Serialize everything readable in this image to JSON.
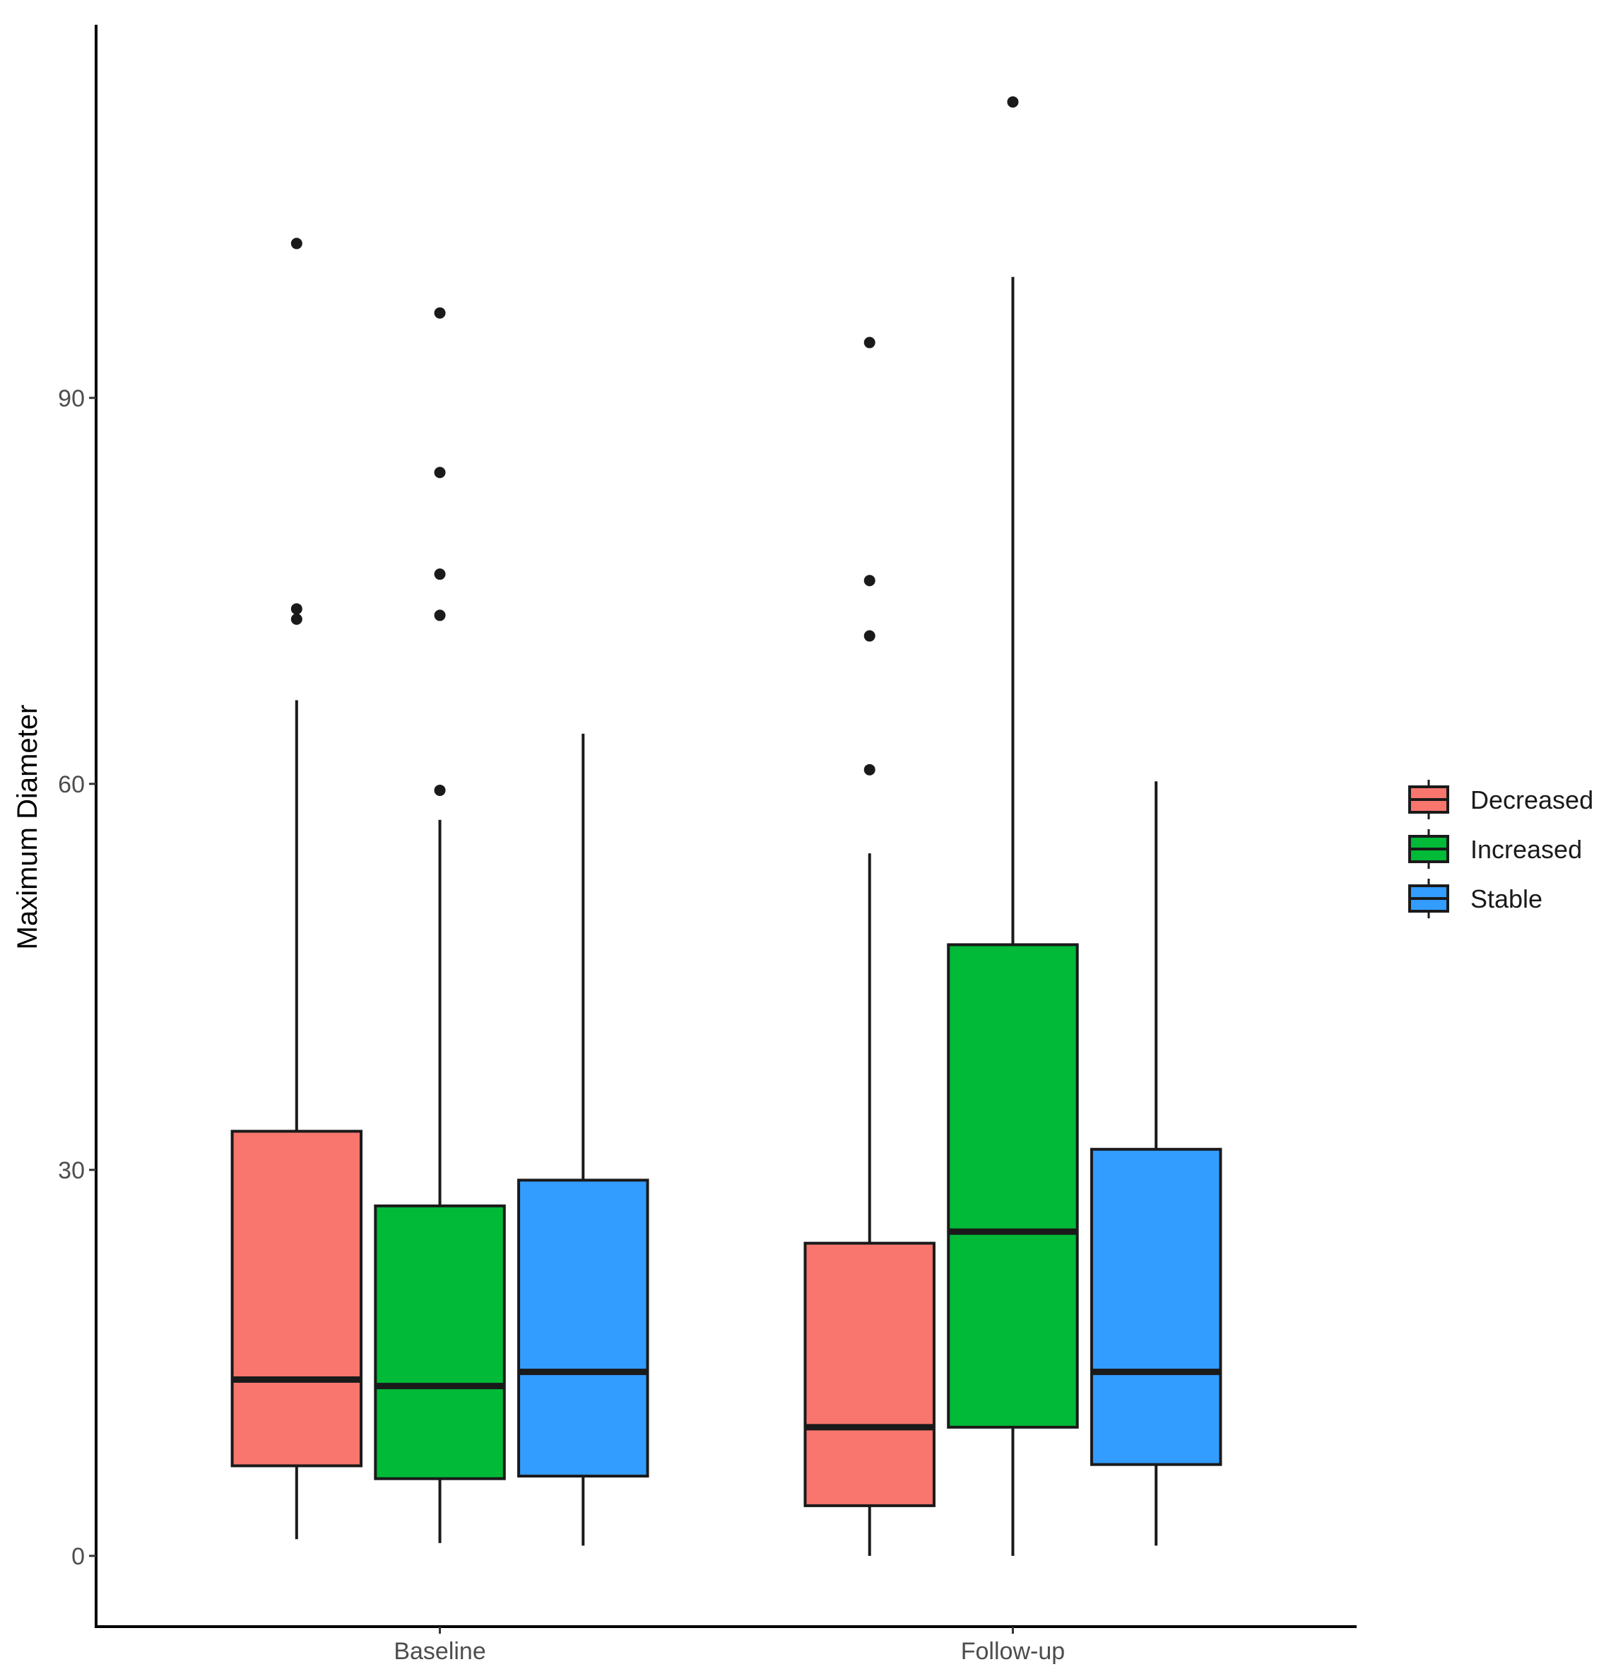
{
  "chart_data": {
    "type": "boxplot",
    "title": "",
    "xlabel": "",
    "ylabel": "Maximum Diameter",
    "ylim": [
      -5.5,
      119
    ],
    "yticks": [
      0,
      30,
      60,
      90
    ],
    "grid": false,
    "legend_position": "right",
    "categories": [
      "Baseline",
      "Follow-up"
    ],
    "series": [
      {
        "name": "Decreased",
        "color": "#F8766D",
        "boxes": [
          {
            "category": "Baseline",
            "whisker_low": 1.3,
            "q1": 7.0,
            "median": 13.7,
            "q3": 33.0,
            "whisker_high": 66.5,
            "outliers": [
              102.0,
              73.6,
              72.8
            ]
          },
          {
            "category": "Follow-up",
            "whisker_low": 0.0,
            "q1": 3.9,
            "median": 10.0,
            "q3": 24.3,
            "whisker_high": 54.6,
            "outliers": [
              94.3,
              75.8,
              71.5,
              61.1
            ]
          }
        ]
      },
      {
        "name": "Increased",
        "color": "#00BA38",
        "boxes": [
          {
            "category": "Baseline",
            "whisker_low": 1.0,
            "q1": 6.0,
            "median": 13.2,
            "q3": 27.2,
            "whisker_high": 57.2,
            "outliers": [
              96.6,
              84.2,
              76.3,
              73.1,
              59.5
            ]
          },
          {
            "category": "Follow-up",
            "whisker_low": 0.0,
            "q1": 10.0,
            "median": 25.2,
            "q3": 47.5,
            "whisker_high": 99.4,
            "outliers": [
              113.0
            ]
          }
        ]
      },
      {
        "name": "Stable",
        "color": "#339CFF",
        "boxes": [
          {
            "category": "Baseline",
            "whisker_low": 0.8,
            "q1": 6.2,
            "median": 14.3,
            "q3": 29.2,
            "whisker_high": 63.9,
            "outliers": []
          },
          {
            "category": "Follow-up",
            "whisker_low": 0.8,
            "q1": 7.1,
            "median": 14.3,
            "q3": 31.6,
            "whisker_high": 60.2,
            "outliers": []
          }
        ]
      }
    ]
  }
}
